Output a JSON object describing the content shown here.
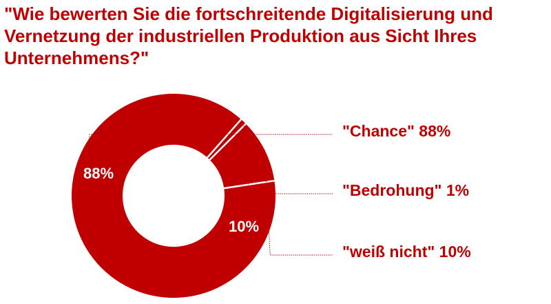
{
  "title": "\"Wie bewerten Sie die fortschreitende Digitalisierung und Vernetzung der industriellen Produktion aus Sicht Ihres Unternehmens?\"",
  "colors": {
    "accent": "#c00000",
    "background": "#ffffff",
    "inner_label": "#ffffff",
    "leader": "#c00000"
  },
  "chart_data": {
    "type": "pie",
    "style": "donut",
    "title": "\"Wie bewerten Sie die fortschreitende Digitalisierung und Vernetzung der industriellen Produktion aus Sicht Ihres Unternehmens?\"",
    "categories": [
      "\"Chance\"",
      "\"Bedrohung\"",
      "\"weiß nicht\""
    ],
    "values": [
      88,
      1,
      10
    ],
    "unit": "%",
    "slice_labels": [
      "88%",
      "",
      "10%"
    ],
    "legend_labels": [
      "\"Chance\" 88%",
      "\"Bedrohung\" 1%",
      "\"weiß nicht\" 10%"
    ],
    "legend_position": "right"
  }
}
